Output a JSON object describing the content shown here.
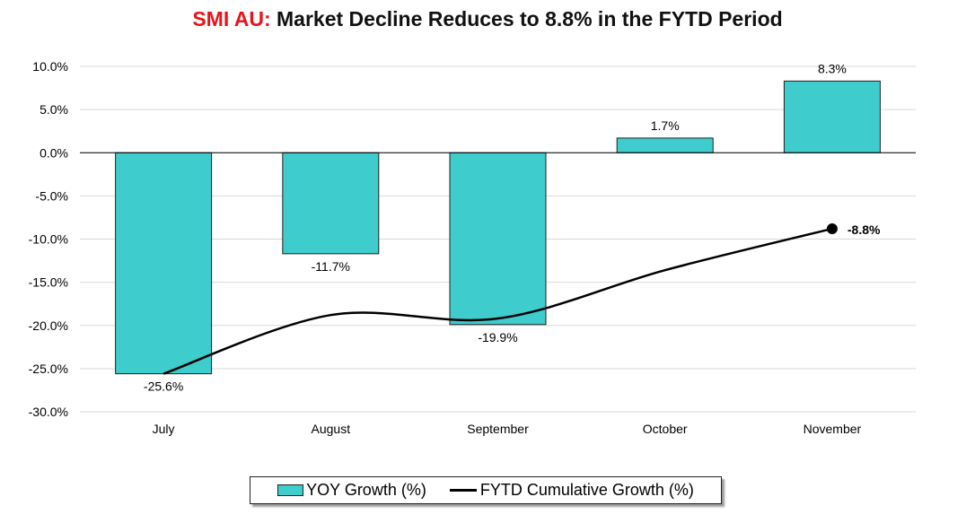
{
  "title": {
    "prefix": "SMI AU:",
    "main": "Market Decline Reduces to 8.8% in the FYTD Period"
  },
  "colors": {
    "title_prefix": "#e8141c",
    "bar_fill": "#3ecccc",
    "bar_stroke": "#222222",
    "line": "#000000",
    "grid": "#d9d9d9"
  },
  "chart_data": {
    "type": "bar",
    "title": "SMI AU: Market Decline Reduces to 8.8% in the FYTD Period",
    "categories": [
      "July",
      "August",
      "September",
      "October",
      "November"
    ],
    "series": [
      {
        "name": "YOY Growth (%)",
        "type": "bar",
        "values": [
          -25.6,
          -11.7,
          -19.9,
          1.7,
          8.3
        ],
        "labels": [
          "-25.6%",
          "-11.7%",
          "-19.9%",
          "1.7%",
          "8.3%"
        ]
      },
      {
        "name": "FYTD Cumulative Growth (%)",
        "type": "line",
        "smooth": true,
        "values": [
          -25.6,
          -18.8,
          -19.2,
          -13.6,
          -8.8
        ],
        "end_label": "-8.8%"
      }
    ],
    "ylim": [
      -30,
      10
    ],
    "yticks": [
      10,
      5,
      0,
      -5,
      -10,
      -15,
      -20,
      -25,
      -30
    ],
    "ytick_labels": [
      "10.0%",
      "5.0%",
      "0.0%",
      "-5.0%",
      "-10.0%",
      "-15.0%",
      "-20.0%",
      "-25.0%",
      "-30.0%"
    ],
    "grid": true,
    "legend": "bottom"
  }
}
